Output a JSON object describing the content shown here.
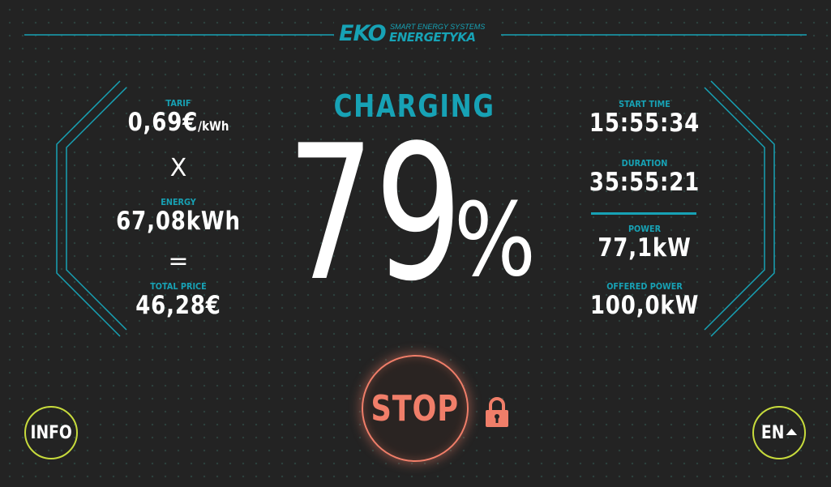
{
  "brand": {
    "logo_main": "EKO",
    "logo_tagline": "SMART ENERGY SYSTEMS",
    "logo_sub": "ENERGETYKA"
  },
  "status": {
    "title": "CHARGING",
    "percent": "79",
    "percent_sign": "%"
  },
  "left": {
    "tarif_label": "TARIF",
    "tarif_value": "0,69€",
    "tarif_unit": "/kWh",
    "multiply_sign": "X",
    "energy_label": "ENERGY",
    "energy_value": "67,08kWh",
    "equals_sign": "=",
    "total_label": "TOTAL PRICE",
    "total_value": "46,28€"
  },
  "right": {
    "start_label": "START TIME",
    "start_value": "15:55:34",
    "duration_label": "DURATION",
    "duration_value": "35:55:21",
    "power_label": "POWER",
    "power_value": "77,1kW",
    "offered_label": "OFFERED POWER",
    "offered_value": "100,0kW"
  },
  "controls": {
    "stop_label": "STOP",
    "info_label": "INFO",
    "lang_label": "EN"
  },
  "icons": {
    "lock": "lock-icon",
    "lang_arrow": "triangle-up-icon"
  },
  "colors": {
    "background": "#232323",
    "accent": "#17a2b5",
    "stop": "#f07e69",
    "round_button_border": "#c7db3c",
    "text": "#ffffff"
  }
}
